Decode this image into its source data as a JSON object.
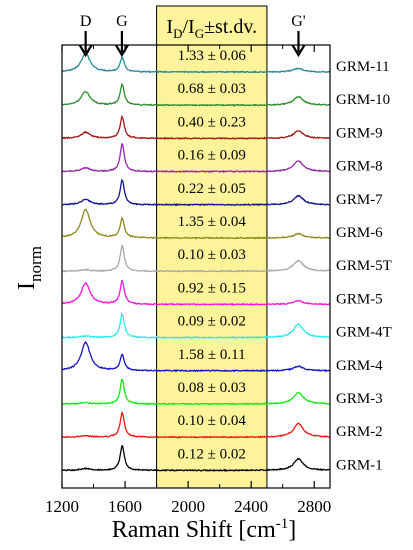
{
  "chart_data": {
    "type": "line",
    "xlabel": "Raman Shift [cm",
    "xlabel_sup": "-1",
    "xlabel_end": "]",
    "ylabel": "I",
    "ylabel_sub": "norm",
    "xlim": [
      1200,
      2900
    ],
    "xticks": [
      "1200",
      "1600",
      "2000",
      "2400",
      "2800"
    ],
    "box_header": {
      "main": "I",
      "sub": "D",
      "mid": "/I",
      "sub2": "G",
      "end": "±st.dv."
    },
    "highlight_color": "#fcf39a",
    "peaks": [
      {
        "label": "D",
        "x": 1350
      },
      {
        "label": "G",
        "x": 1580
      },
      {
        "label": "G'",
        "x": 2700
      }
    ],
    "series": [
      {
        "name": "GRM-11",
        "ratio": "1.33 ± 0.06",
        "color": "#2a8a96",
        "d": 0.62,
        "g": 0.47,
        "g2": 0.12
      },
      {
        "name": "GRM-10",
        "ratio": "0.68 ± 0.03",
        "color": "#2e8b2e",
        "d": 0.45,
        "g": 0.68,
        "g2": 0.28
      },
      {
        "name": "GRM-9",
        "ratio": "0.40 ± 0.23",
        "color": "#a01818",
        "d": 0.2,
        "g": 0.72,
        "g2": 0.25
      },
      {
        "name": "GRM-8",
        "ratio": "0.16 ± 0.09",
        "color": "#9428a8",
        "d": 0.12,
        "g": 0.92,
        "g2": 0.35
      },
      {
        "name": "GRM-7",
        "ratio": "0.22 ± 0.05",
        "color": "#14148c",
        "d": 0.18,
        "g": 0.82,
        "g2": 0.3
      },
      {
        "name": "GRM-6",
        "ratio": "1.35 ± 0.04",
        "color": "#8c8a1e",
        "d": 0.95,
        "g": 0.65,
        "g2": 0.14
      },
      {
        "name": "GRM-5T",
        "ratio": "0.10 ± 0.03",
        "color": "#aaaaaa",
        "d": 0.05,
        "g": 0.85,
        "g2": 0.35
      },
      {
        "name": "GRM-5",
        "ratio": "0.92 ± 0.15",
        "color": "#ff14dc",
        "d": 0.7,
        "g": 0.78,
        "g2": 0.12
      },
      {
        "name": "GRM-4T",
        "ratio": "0.09 ± 0.02",
        "color": "#28eaea",
        "d": 0.05,
        "g": 0.8,
        "g2": 0.45
      },
      {
        "name": "GRM-4",
        "ratio": "1.58 ± 0.11",
        "color": "#1414c8",
        "d": 0.95,
        "g": 0.52,
        "g2": 0.15
      },
      {
        "name": "GRM-3",
        "ratio": "0.08 ± 0.03",
        "color": "#14e614",
        "d": 0.04,
        "g": 0.82,
        "g2": 0.38
      },
      {
        "name": "GRM-2",
        "ratio": "0.10 ± 0.04",
        "color": "#f01414",
        "d": 0.05,
        "g": 0.82,
        "g2": 0.45
      },
      {
        "name": "GRM-1",
        "ratio": "0.12 ± 0.02",
        "color": "#000000",
        "d": 0.06,
        "g": 0.82,
        "g2": 0.38
      }
    ]
  }
}
